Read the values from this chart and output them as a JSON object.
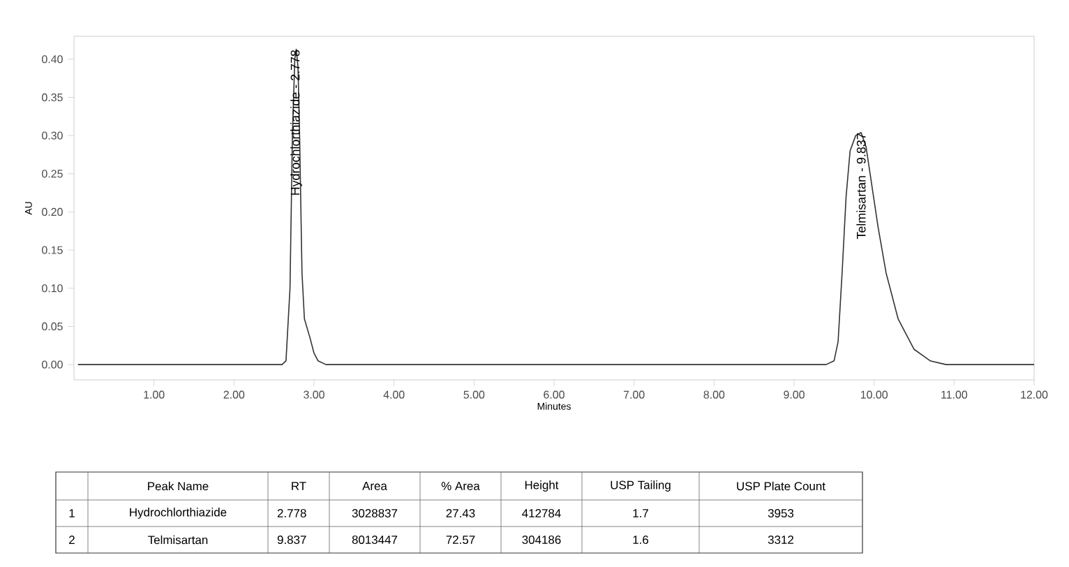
{
  "chart_data": {
    "type": "line",
    "xlabel": "Minutes",
    "ylabel": "AU",
    "color": "#333333",
    "x": [
      0.05,
      1.0,
      2.0,
      2.6,
      2.65,
      2.7,
      2.73,
      2.76,
      2.778,
      2.8,
      2.82,
      2.85,
      2.88,
      2.95,
      3.0,
      3.05,
      3.15,
      4.0,
      6.0,
      8.0,
      9.4,
      9.5,
      9.55,
      9.6,
      9.65,
      9.7,
      9.77,
      9.837,
      9.9,
      9.95,
      10.05,
      10.15,
      10.3,
      10.5,
      10.7,
      10.9,
      11.5,
      12.0
    ],
    "values": [
      0,
      0,
      0,
      0,
      0.005,
      0.1,
      0.3,
      0.4,
      0.413,
      0.39,
      0.3,
      0.12,
      0.06,
      0.035,
      0.015,
      0.005,
      0,
      0,
      0,
      0,
      0,
      0.005,
      0.03,
      0.12,
      0.22,
      0.28,
      0.3,
      0.304,
      0.285,
      0.25,
      0.18,
      0.12,
      0.06,
      0.02,
      0.005,
      0,
      0,
      0
    ],
    "xlim": [
      0,
      12
    ],
    "ylim": [
      -0.02,
      0.43
    ],
    "xticks": [
      {
        "value": 1,
        "label": "1.00"
      },
      {
        "value": 2,
        "label": "2.00"
      },
      {
        "value": 3,
        "label": "3.00"
      },
      {
        "value": 4,
        "label": "4.00"
      },
      {
        "value": 5,
        "label": "5.00"
      },
      {
        "value": 6,
        "label": "6.00"
      },
      {
        "value": 7,
        "label": "7.00"
      },
      {
        "value": 8,
        "label": "8.00"
      },
      {
        "value": 9,
        "label": "9.00"
      },
      {
        "value": 10,
        "label": "10.00"
      },
      {
        "value": 11,
        "label": "11.00"
      },
      {
        "value": 12,
        "label": "12.00"
      }
    ],
    "yticks": [
      {
        "value": 0,
        "label": "0.00"
      },
      {
        "value": 0.05,
        "label": "0.05"
      },
      {
        "value": 0.1,
        "label": "0.10"
      },
      {
        "value": 0.15,
        "label": "0.15"
      },
      {
        "value": 0.2,
        "label": "0.20"
      },
      {
        "value": 0.25,
        "label": "0.25"
      },
      {
        "value": 0.3,
        "label": "0.30"
      },
      {
        "value": 0.35,
        "label": "0.35"
      },
      {
        "value": 0.4,
        "label": "0.40"
      }
    ],
    "annotations": [
      {
        "text": "Hydrochlorthiazide - 2.778",
        "x": 2.778,
        "y": 0.413
      },
      {
        "text": "Telmisartan - 9.837",
        "x": 9.837,
        "y": 0.304
      },
      "Peak Name",
      "RT",
      "Area",
      "% Area",
      "Height",
      "USP Tailing",
      "USP Plate Count",
      "1",
      "Hydrochlorthiazide",
      "2.778",
      "3028837",
      "27.43",
      "412784",
      "1.7",
      "3953",
      "2",
      "Telmisartan",
      "9.837",
      "8013447",
      "72.57",
      "304186",
      "1.6",
      "3312"
    ]
  }
}
